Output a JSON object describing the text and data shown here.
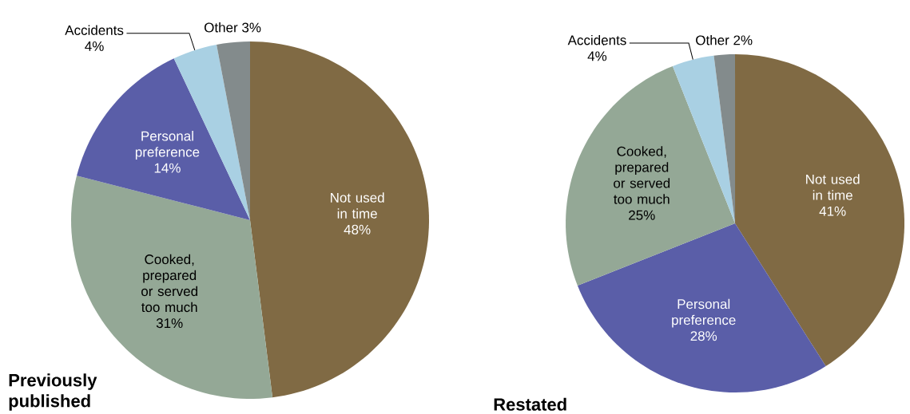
{
  "chart_data": [
    {
      "type": "pie",
      "title": "Previously published",
      "categories": [
        "Not used in time",
        "Cooked, prepared or served too much",
        "Personal preference",
        "Accidents",
        "Other"
      ],
      "values": [
        48,
        31,
        14,
        4,
        3
      ],
      "colors": [
        "#806a44",
        "#94a896",
        "#5a5ea8",
        "#a9d0e3",
        "#838b8c"
      ],
      "value_labels": [
        "48%",
        "31%",
        "14%",
        "4%",
        "3%"
      ]
    },
    {
      "type": "pie",
      "title": "Restated",
      "categories": [
        "Not used in time",
        "Personal preference",
        "Cooked, prepared or served too much",
        "Accidents",
        "Other"
      ],
      "values": [
        41,
        28,
        25,
        4,
        2
      ],
      "colors": [
        "#806a44",
        "#5a5ea8",
        "#94a896",
        "#a9d0e3",
        "#838b8c"
      ],
      "value_labels": [
        "41%",
        "28%",
        "25%",
        "4%",
        "2%"
      ]
    }
  ]
}
